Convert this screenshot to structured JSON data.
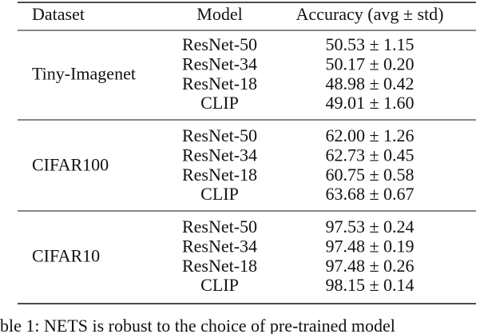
{
  "table": {
    "header": [
      "Dataset",
      "Model",
      "Accuracy (avg ± std)"
    ],
    "groups": [
      {
        "dataset": "Tiny-Imagenet",
        "rows": [
          [
            "ResNet-50",
            "50.53 ± 1.15"
          ],
          [
            "ResNet-34",
            "50.17 ± 0.20"
          ],
          [
            "ResNet-18",
            "48.98 ± 0.42"
          ],
          [
            "CLIP",
            "49.01 ± 1.60"
          ]
        ]
      },
      {
        "dataset": "CIFAR100",
        "rows": [
          [
            "ResNet-50",
            "62.00 ± 1.26"
          ],
          [
            "ResNet-34",
            "62.73 ± 0.45"
          ],
          [
            "ResNet-18",
            "60.75 ± 0.58"
          ],
          [
            "CLIP",
            "63.68 ± 0.67"
          ]
        ]
      },
      {
        "dataset": "CIFAR10",
        "rows": [
          [
            "ResNet-50",
            "97.53 ± 0.24"
          ],
          [
            "ResNet-34",
            "97.48 ± 0.19"
          ],
          [
            "ResNet-18",
            "97.48 ± 0.26"
          ],
          [
            "CLIP",
            "98.15 ± 0.14"
          ]
        ]
      }
    ]
  },
  "caption": "ble 1: NETS is robust to the choice of pre-trained model"
}
